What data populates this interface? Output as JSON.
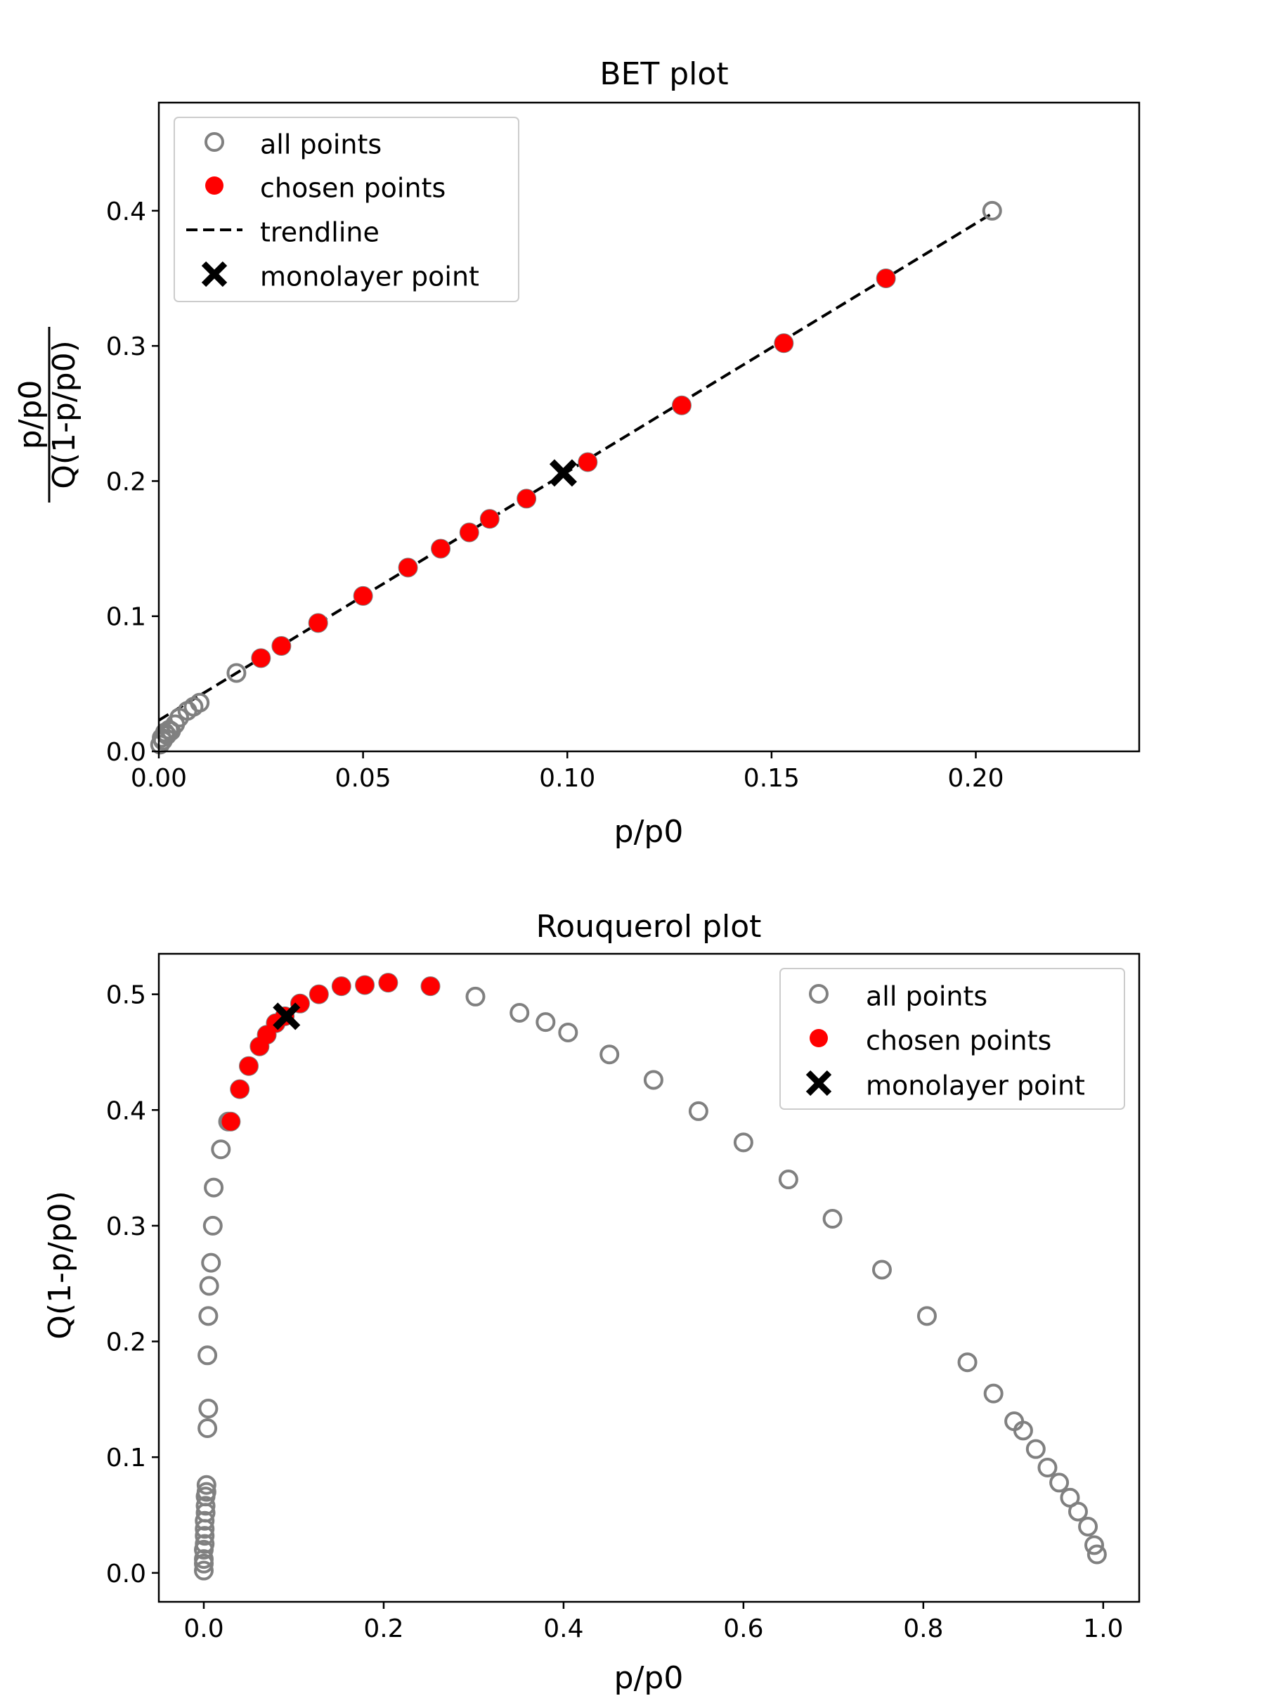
{
  "colors": {
    "all_points": "#808080",
    "chosen_points": "#ff0000",
    "trendline": "#000000",
    "monolayer": "#000000",
    "legend_border": "#cccccc"
  },
  "chart_data": [
    {
      "type": "scatter",
      "title": "BET plot",
      "xlabel": "p/p0",
      "ylabel_numerator": "p/p0",
      "ylabel_denominator": "Q(1-p/p0)",
      "xlim": [
        0.0,
        0.24
      ],
      "ylim": [
        0.0,
        0.48
      ],
      "xticks": [
        0.0,
        0.05,
        0.1,
        0.15,
        0.2
      ],
      "xtick_labels": [
        "0.00",
        "0.05",
        "0.10",
        "0.15",
        "0.20"
      ],
      "yticks": [
        0.0,
        0.1,
        0.2,
        0.3,
        0.4
      ],
      "ytick_labels": [
        "0.0",
        "0.1",
        "0.2",
        "0.3",
        "0.4"
      ],
      "grid": false,
      "legend_position": "upper-left",
      "legend": [
        "all points",
        "chosen points",
        "trendline",
        "monolayer point"
      ],
      "series": [
        {
          "name": "all points",
          "marker": "hollow-circle",
          "x": [
            0.0003,
            0.0007,
            0.001,
            0.0015,
            0.002,
            0.0025,
            0.003,
            0.004,
            0.005,
            0.007,
            0.0085,
            0.01,
            0.019,
            0.025,
            0.03,
            0.039,
            0.05,
            0.061,
            0.069,
            0.076,
            0.081,
            0.09,
            0.105,
            0.128,
            0.153,
            0.178,
            0.204
          ],
          "y": [
            0.005,
            0.01,
            0.008,
            0.014,
            0.012,
            0.016,
            0.015,
            0.02,
            0.025,
            0.03,
            0.033,
            0.036,
            0.058,
            0.069,
            0.078,
            0.095,
            0.115,
            0.136,
            0.15,
            0.162,
            0.172,
            0.187,
            0.214,
            0.256,
            0.302,
            0.35,
            0.4
          ]
        },
        {
          "name": "chosen points",
          "marker": "filled-circle",
          "x": [
            0.025,
            0.03,
            0.039,
            0.05,
            0.061,
            0.069,
            0.076,
            0.081,
            0.09,
            0.105,
            0.128,
            0.153,
            0.178
          ],
          "y": [
            0.069,
            0.078,
            0.095,
            0.115,
            0.136,
            0.15,
            0.162,
            0.172,
            0.187,
            0.214,
            0.256,
            0.302,
            0.35
          ]
        },
        {
          "name": "trendline",
          "marker": "dashed-line",
          "x": [
            0.0,
            0.204
          ],
          "y": [
            0.023,
            0.398
          ]
        },
        {
          "name": "monolayer point",
          "marker": "x",
          "x": [
            0.099
          ],
          "y": [
            0.206
          ]
        }
      ]
    },
    {
      "type": "scatter",
      "title": "Rouquerol plot",
      "xlabel": "p/p0",
      "ylabel": "Q(1-p/p0)",
      "xlim": [
        -0.05,
        1.04
      ],
      "ylim": [
        -0.025,
        0.535
      ],
      "xticks": [
        0.0,
        0.2,
        0.4,
        0.6,
        0.8,
        1.0
      ],
      "xtick_labels": [
        "0.0",
        "0.2",
        "0.4",
        "0.6",
        "0.8",
        "1.0"
      ],
      "yticks": [
        0.0,
        0.1,
        0.2,
        0.3,
        0.4,
        0.5
      ],
      "ytick_labels": [
        "0.0",
        "0.1",
        "0.2",
        "0.3",
        "0.4",
        "0.5"
      ],
      "grid": false,
      "legend_position": "upper-right",
      "legend": [
        "all points",
        "chosen points",
        "monolayer point"
      ],
      "series": [
        {
          "name": "all points",
          "marker": "hollow-circle",
          "x": [
            0.0,
            0.0,
            0.0,
            0.0,
            0.001,
            0.001,
            0.001,
            0.001,
            0.002,
            0.002,
            0.002,
            0.003,
            0.003,
            0.004,
            0.005,
            0.004,
            0.005,
            0.006,
            0.008,
            0.011,
            0.01,
            0.019,
            0.027,
            0.03,
            0.04,
            0.05,
            0.062,
            0.07,
            0.08,
            0.09,
            0.107,
            0.128,
            0.153,
            0.179,
            0.205,
            0.252,
            0.302,
            0.351,
            0.38,
            0.405,
            0.451,
            0.5,
            0.55,
            0.6,
            0.65,
            0.699,
            0.754,
            0.804,
            0.849,
            0.878,
            0.901,
            0.911,
            0.925,
            0.938,
            0.951,
            0.963,
            0.972,
            0.983,
            0.99,
            0.993
          ],
          "y": [
            0.002,
            0.008,
            0.012,
            0.02,
            0.025,
            0.032,
            0.038,
            0.045,
            0.052,
            0.058,
            0.066,
            0.07,
            0.076,
            0.125,
            0.142,
            0.188,
            0.222,
            0.248,
            0.268,
            0.333,
            0.3,
            0.366,
            0.39,
            0.39,
            0.418,
            0.438,
            0.455,
            0.465,
            0.475,
            0.481,
            0.492,
            0.5,
            0.507,
            0.508,
            0.51,
            0.507,
            0.498,
            0.484,
            0.476,
            0.467,
            0.448,
            0.426,
            0.399,
            0.372,
            0.34,
            0.306,
            0.262,
            0.222,
            0.182,
            0.155,
            0.131,
            0.123,
            0.107,
            0.091,
            0.078,
            0.065,
            0.053,
            0.04,
            0.024,
            0.016
          ]
        },
        {
          "name": "chosen points",
          "marker": "filled-circle",
          "x": [
            0.03,
            0.04,
            0.05,
            0.062,
            0.07,
            0.08,
            0.09,
            0.107,
            0.128,
            0.153,
            0.179,
            0.205,
            0.252
          ],
          "y": [
            0.39,
            0.418,
            0.438,
            0.455,
            0.465,
            0.475,
            0.481,
            0.492,
            0.5,
            0.507,
            0.508,
            0.51,
            0.507
          ]
        },
        {
          "name": "monolayer point",
          "marker": "x",
          "x": [
            0.092
          ],
          "y": [
            0.481
          ]
        }
      ]
    }
  ]
}
